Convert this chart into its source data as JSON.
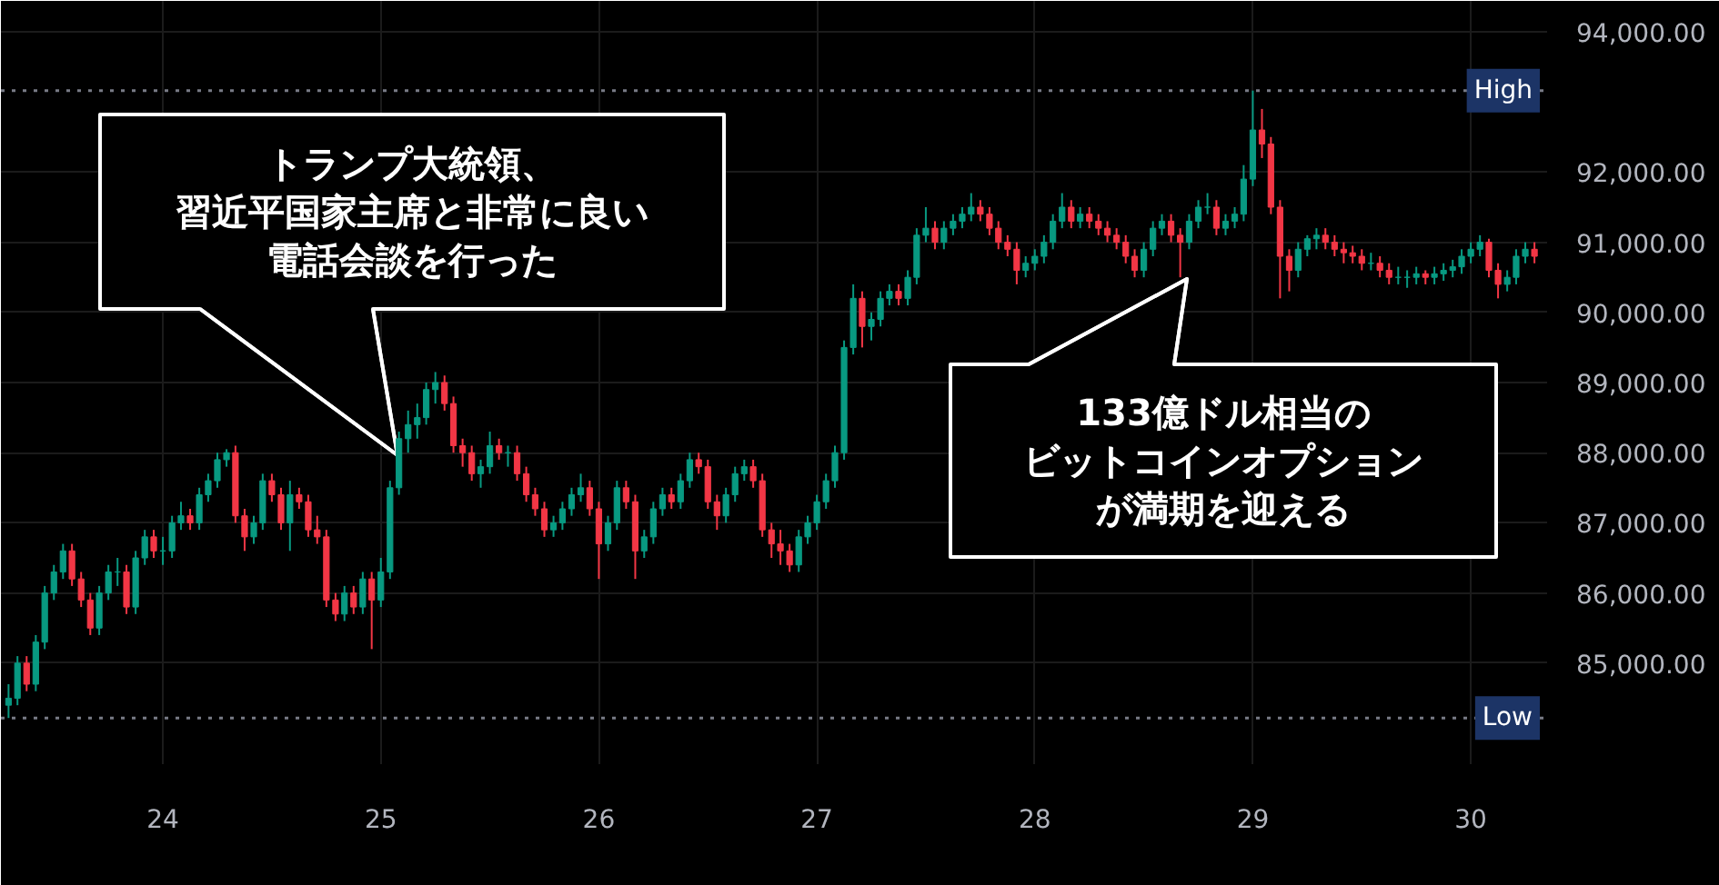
{
  "chart_data": {
    "type": "candlestick",
    "xlim": [
      23.257,
      30.35
    ],
    "ylim": [
      83560,
      94440
    ],
    "xticks": [
      24,
      25,
      26,
      27,
      28,
      29,
      30
    ],
    "yticks": [
      {
        "value": 85000,
        "label": "85,000.00"
      },
      {
        "value": 86000,
        "label": "86,000.00"
      },
      {
        "value": 87000,
        "label": "87,000.00"
      },
      {
        "value": 88000,
        "label": "88,000.00"
      },
      {
        "value": 89000,
        "label": "89,000.00"
      },
      {
        "value": 90000,
        "label": "90,000.00"
      },
      {
        "value": 91000,
        "label": "91,000.00"
      },
      {
        "value": 92000,
        "label": "92,000.00"
      },
      {
        "value": 94000,
        "label": "94,000.00"
      }
    ],
    "grid": true,
    "ref_lines": [
      {
        "axis": "y",
        "value": 93161.86,
        "label": "High",
        "color": "#787b86",
        "line_style": "dotted"
      },
      {
        "axis": "y",
        "value": 84217.87,
        "label": "Low",
        "color": "#787b86",
        "line_style": "dotted"
      }
    ],
    "annotations": [
      "トランプ大統領、習近平国家主席と非常に良い電話会談を行った",
      "133億ドル相当のビットコインオプションが満期を迎える"
    ],
    "x": [
      23.292,
      23.333,
      23.375,
      23.417,
      23.458,
      23.5,
      23.542,
      23.583,
      23.625,
      23.667,
      23.708,
      23.75,
      23.792,
      23.833,
      23.875,
      23.917,
      23.958,
      24.0,
      24.042,
      24.083,
      24.125,
      24.167,
      24.208,
      24.25,
      24.292,
      24.333,
      24.375,
      24.417,
      24.458,
      24.5,
      24.542,
      24.583,
      24.625,
      24.667,
      24.708,
      24.75,
      24.792,
      24.833,
      24.875,
      24.917,
      24.958,
      25.0,
      25.042,
      25.083,
      25.125,
      25.167,
      25.208,
      25.25,
      25.292,
      25.333,
      25.375,
      25.417,
      25.458,
      25.5,
      25.542,
      25.583,
      25.625,
      25.667,
      25.708,
      25.75,
      25.792,
      25.833,
      25.875,
      25.917,
      25.958,
      26.0,
      26.042,
      26.083,
      26.125,
      26.167,
      26.208,
      26.25,
      26.292,
      26.333,
      26.375,
      26.417,
      26.458,
      26.5,
      26.542,
      26.583,
      26.625,
      26.667,
      26.708,
      26.75,
      26.792,
      26.833,
      26.875,
      26.917,
      26.958,
      27.0,
      27.042,
      27.083,
      27.125,
      27.167,
      27.208,
      27.25,
      27.292,
      27.333,
      27.375,
      27.417,
      27.458,
      27.5,
      27.542,
      27.583,
      27.625,
      27.667,
      27.708,
      27.75,
      27.792,
      27.833,
      27.875,
      27.917,
      27.958,
      28.0,
      28.042,
      28.083,
      28.125,
      28.167,
      28.208,
      28.25,
      28.292,
      28.333,
      28.375,
      28.417,
      28.458,
      28.5,
      28.542,
      28.583,
      28.625,
      28.667,
      28.708,
      28.75,
      28.792,
      28.833,
      28.875,
      28.917,
      28.958,
      29.0,
      29.042,
      29.083,
      29.125,
      29.167,
      29.208,
      29.25,
      29.292,
      29.333,
      29.375,
      29.417,
      29.458,
      29.5,
      29.542,
      29.583,
      29.625,
      29.667,
      29.708,
      29.75,
      29.792,
      29.833,
      29.875,
      29.917,
      29.958,
      30.0,
      30.042,
      30.083,
      30.125,
      30.167,
      30.208,
      30.25,
      30.292
    ],
    "ohlc": [
      [
        84400,
        84700,
        84217.87,
        84500
      ],
      [
        84500,
        85100,
        84400,
        85000
      ],
      [
        85000,
        85100,
        84600,
        84700
      ],
      [
        84700,
        85400,
        84600,
        85300
      ],
      [
        85300,
        86100,
        85200,
        86000
      ],
      [
        86000,
        86400,
        85900,
        86300
      ],
      [
        86300,
        86700,
        86200,
        86600
      ],
      [
        86600,
        86700,
        86100,
        86200
      ],
      [
        86200,
        86300,
        85800,
        85900
      ],
      [
        85900,
        86000,
        85400,
        85500
      ],
      [
        85500,
        86100,
        85400,
        86000
      ],
      [
        86000,
        86400,
        85900,
        86300
      ],
      [
        86300,
        86500,
        86100,
        86300
      ],
      [
        86300,
        86400,
        85700,
        85800
      ],
      [
        85800,
        86600,
        85700,
        86500
      ],
      [
        86500,
        86900,
        86400,
        86800
      ],
      [
        86800,
        86900,
        86500,
        86600
      ],
      [
        86600,
        86800,
        86400,
        86600
      ],
      [
        86600,
        87100,
        86500,
        87000
      ],
      [
        87000,
        87300,
        86900,
        87100
      ],
      [
        87100,
        87200,
        86900,
        87000
      ],
      [
        87000,
        87500,
        86900,
        87400
      ],
      [
        87400,
        87700,
        87300,
        87600
      ],
      [
        87600,
        88000,
        87500,
        87900
      ],
      [
        87900,
        88050,
        87800,
        88000
      ],
      [
        88000,
        88100,
        87000,
        87100
      ],
      [
        87100,
        87200,
        86600,
        86800
      ],
      [
        86800,
        87100,
        86700,
        87000
      ],
      [
        87000,
        87700,
        86900,
        87600
      ],
      [
        87600,
        87700,
        87300,
        87400
      ],
      [
        87400,
        87500,
        86900,
        87000
      ],
      [
        87000,
        87600,
        86600,
        87400
      ],
      [
        87400,
        87500,
        87200,
        87300
      ],
      [
        87300,
        87400,
        86800,
        86900
      ],
      [
        86900,
        87100,
        86700,
        86800
      ],
      [
        86800,
        86900,
        85800,
        85900
      ],
      [
        85900,
        86000,
        85600,
        85700
      ],
      [
        85700,
        86100,
        85600,
        86000
      ],
      [
        86000,
        86100,
        85700,
        85800
      ],
      [
        85800,
        86300,
        85700,
        86200
      ],
      [
        86200,
        86300,
        85200,
        85900
      ],
      [
        85900,
        86500,
        85800,
        86300
      ],
      [
        86300,
        87600,
        86200,
        87500
      ],
      [
        87500,
        88300,
        87400,
        88200
      ],
      [
        88200,
        88600,
        88000,
        88400
      ],
      [
        88400,
        88700,
        88200,
        88500
      ],
      [
        88500,
        89000,
        88400,
        88900
      ],
      [
        88900,
        89150,
        88700,
        89000
      ],
      [
        89000,
        89100,
        88600,
        88700
      ],
      [
        88700,
        88800,
        88000,
        88100
      ],
      [
        88100,
        88200,
        87800,
        88000
      ],
      [
        88000,
        88100,
        87600,
        87700
      ],
      [
        87700,
        87900,
        87500,
        87800
      ],
      [
        87800,
        88300,
        87700,
        88100
      ],
      [
        88100,
        88200,
        87900,
        88000
      ],
      [
        88000,
        88100,
        87800,
        88000
      ],
      [
        88000,
        88100,
        87600,
        87700
      ],
      [
        87700,
        87800,
        87300,
        87400
      ],
      [
        87400,
        87500,
        87100,
        87200
      ],
      [
        87200,
        87300,
        86800,
        86900
      ],
      [
        86900,
        87100,
        86800,
        87000
      ],
      [
        87000,
        87300,
        86900,
        87200
      ],
      [
        87200,
        87500,
        87100,
        87400
      ],
      [
        87400,
        87700,
        87300,
        87500
      ],
      [
        87500,
        87600,
        87100,
        87200
      ],
      [
        87200,
        87300,
        86200,
        86700
      ],
      [
        86700,
        87100,
        86600,
        87000
      ],
      [
        87000,
        87600,
        86900,
        87500
      ],
      [
        87500,
        87600,
        87200,
        87300
      ],
      [
        87300,
        87400,
        86200,
        86600
      ],
      [
        86600,
        86900,
        86500,
        86800
      ],
      [
        86800,
        87300,
        86700,
        87200
      ],
      [
        87200,
        87500,
        87100,
        87400
      ],
      [
        87400,
        87500,
        87200,
        87300
      ],
      [
        87300,
        87700,
        87200,
        87600
      ],
      [
        87600,
        88000,
        87500,
        87900
      ],
      [
        87900,
        88000,
        87700,
        87800
      ],
      [
        87800,
        87900,
        87200,
        87300
      ],
      [
        87300,
        87400,
        86900,
        87100
      ],
      [
        87100,
        87500,
        87000,
        87400
      ],
      [
        87400,
        87800,
        87300,
        87700
      ],
      [
        87700,
        87900,
        87600,
        87800
      ],
      [
        87800,
        87900,
        87500,
        87600
      ],
      [
        87600,
        87700,
        86800,
        86900
      ],
      [
        86900,
        87000,
        86500,
        86700
      ],
      [
        86700,
        86900,
        86400,
        86600
      ],
      [
        86600,
        86700,
        86300,
        86400
      ],
      [
        86400,
        86900,
        86300,
        86800
      ],
      [
        86800,
        87100,
        86700,
        87000
      ],
      [
        87000,
        87400,
        86900,
        87300
      ],
      [
        87300,
        87700,
        87200,
        87600
      ],
      [
        87600,
        88100,
        87500,
        88000
      ],
      [
        88000,
        89600,
        87900,
        89500
      ],
      [
        89500,
        90400,
        89400,
        90200
      ],
      [
        90200,
        90300,
        89500,
        89800
      ],
      [
        89800,
        90000,
        89600,
        89900
      ],
      [
        89900,
        90300,
        89800,
        90200
      ],
      [
        90200,
        90400,
        90100,
        90300
      ],
      [
        90300,
        90400,
        90100,
        90200
      ],
      [
        90200,
        90600,
        90100,
        90500
      ],
      [
        90500,
        91200,
        90400,
        91100
      ],
      [
        91100,
        91500,
        91000,
        91200
      ],
      [
        91200,
        91300,
        90900,
        91000
      ],
      [
        91000,
        91300,
        90900,
        91200
      ],
      [
        91200,
        91400,
        91100,
        91300
      ],
      [
        91300,
        91500,
        91200,
        91400
      ],
      [
        91400,
        91700,
        91300,
        91500
      ],
      [
        91500,
        91600,
        91300,
        91400
      ],
      [
        91400,
        91500,
        91100,
        91200
      ],
      [
        91200,
        91300,
        90900,
        91000
      ],
      [
        91000,
        91100,
        90800,
        90900
      ],
      [
        90900,
        91000,
        90400,
        90600
      ],
      [
        90600,
        90800,
        90500,
        90700
      ],
      [
        90700,
        90900,
        90600,
        90800
      ],
      [
        90800,
        91100,
        90700,
        91000
      ],
      [
        91000,
        91400,
        90900,
        91300
      ],
      [
        91300,
        91700,
        91200,
        91500
      ],
      [
        91500,
        91600,
        91200,
        91300
      ],
      [
        91300,
        91500,
        91200,
        91400
      ],
      [
        91400,
        91500,
        91200,
        91300
      ],
      [
        91300,
        91400,
        91100,
        91200
      ],
      [
        91200,
        91300,
        91000,
        91100
      ],
      [
        91100,
        91200,
        90900,
        91000
      ],
      [
        91000,
        91100,
        90700,
        90800
      ],
      [
        90800,
        90900,
        90500,
        90600
      ],
      [
        90600,
        91000,
        90500,
        90900
      ],
      [
        90900,
        91300,
        90800,
        91200
      ],
      [
        91200,
        91400,
        91100,
        91300
      ],
      [
        91300,
        91400,
        91000,
        91100
      ],
      [
        91100,
        91200,
        90500,
        91000
      ],
      [
        91000,
        91400,
        90900,
        91300
      ],
      [
        91300,
        91600,
        91200,
        91500
      ],
      [
        91500,
        91700,
        91400,
        91500
      ],
      [
        91500,
        91600,
        91100,
        91200
      ],
      [
        91200,
        91400,
        91100,
        91300
      ],
      [
        91300,
        91500,
        91200,
        91400
      ],
      [
        91400,
        92100,
        91300,
        91900
      ],
      [
        91900,
        93161.86,
        91800,
        92600
      ],
      [
        92600,
        92900,
        92200,
        92400
      ],
      [
        92400,
        92500,
        91400,
        91500
      ],
      [
        91500,
        91600,
        90200,
        90800
      ],
      [
        90800,
        90900,
        90300,
        90600
      ],
      [
        90600,
        91000,
        90500,
        90900
      ],
      [
        90900,
        91100,
        90800,
        91050
      ],
      [
        91050,
        91200,
        90900,
        91100
      ],
      [
        91100,
        91200,
        90900,
        91000
      ],
      [
        91000,
        91100,
        90800,
        90900
      ],
      [
        90900,
        91000,
        90700,
        90850
      ],
      [
        90850,
        90950,
        90700,
        90800
      ],
      [
        90800,
        90900,
        90600,
        90700
      ],
      [
        90700,
        90850,
        90600,
        90700
      ],
      [
        90700,
        90800,
        90500,
        90600
      ],
      [
        90600,
        90700,
        90400,
        90500
      ],
      [
        90500,
        90650,
        90400,
        90500
      ],
      [
        90500,
        90600,
        90350,
        90500
      ],
      [
        90500,
        90650,
        90400,
        90550
      ],
      [
        90550,
        90600,
        90400,
        90500
      ],
      [
        90500,
        90650,
        90400,
        90550
      ],
      [
        90550,
        90700,
        90450,
        90600
      ],
      [
        90600,
        90750,
        90500,
        90650
      ],
      [
        90650,
        90900,
        90550,
        90800
      ],
      [
        90800,
        91000,
        90700,
        90900
      ],
      [
        90900,
        91100,
        90800,
        91000
      ],
      [
        91000,
        91050,
        90500,
        90600
      ],
      [
        90600,
        90700,
        90200,
        90400
      ],
      [
        90400,
        90600,
        90300,
        90500
      ],
      [
        90500,
        90900,
        90400,
        90800
      ],
      [
        90800,
        91000,
        90700,
        90900
      ],
      [
        90900,
        91000,
        90700,
        90800
      ]
    ],
    "colors": [
      "#089981",
      "#089981",
      "#f23645",
      "#089981",
      "#089981",
      "#089981",
      "#089981",
      "#f23645",
      "#f23645",
      "#f23645",
      "#089981",
      "#089981",
      "#089981",
      "#f23645",
      "#089981",
      "#089981",
      "#f23645",
      "#089981",
      "#089981",
      "#089981",
      "#f23645",
      "#089981",
      "#089981",
      "#089981",
      "#089981",
      "#f23645",
      "#f23645",
      "#089981",
      "#089981",
      "#f23645",
      "#f23645",
      "#089981",
      "#f23645",
      "#f23645",
      "#f23645",
      "#f23645",
      "#f23645",
      "#089981",
      "#f23645",
      "#089981",
      "#f23645",
      "#089981",
      "#089981",
      "#089981",
      "#089981",
      "#089981",
      "#089981",
      "#089981",
      "#f23645",
      "#f23645",
      "#f23645",
      "#f23645",
      "#089981",
      "#089981",
      "#f23645",
      "#089981",
      "#f23645",
      "#f23645",
      "#f23645",
      "#f23645",
      "#089981",
      "#089981",
      "#089981",
      "#089981",
      "#f23645",
      "#f23645",
      "#089981",
      "#089981",
      "#f23645",
      "#f23645",
      "#089981",
      "#089981",
      "#089981",
      "#f23645",
      "#089981",
      "#089981",
      "#f23645",
      "#f23645",
      "#f23645",
      "#089981",
      "#089981",
      "#089981",
      "#f23645",
      "#f23645",
      "#f23645",
      "#f23645",
      "#f23645",
      "#089981",
      "#089981",
      "#089981",
      "#089981",
      "#089981",
      "#089981",
      "#089981",
      "#f23645",
      "#089981",
      "#089981",
      "#089981",
      "#f23645",
      "#089981",
      "#089981",
      "#089981",
      "#f23645",
      "#089981",
      "#089981",
      "#089981",
      "#089981",
      "#f23645",
      "#f23645",
      "#f23645",
      "#f23645",
      "#f23645",
      "#089981",
      "#089981",
      "#089981",
      "#089981",
      "#089981",
      "#f23645",
      "#089981",
      "#f23645",
      "#f23645",
      "#f23645",
      "#f23645",
      "#f23645",
      "#f23645",
      "#089981",
      "#089981",
      "#089981",
      "#f23645",
      "#f23645",
      "#089981",
      "#089981",
      "#089981",
      "#f23645",
      "#089981",
      "#089981",
      "#089981",
      "#089981",
      "#f23645",
      "#f23645",
      "#f23645",
      "#f23645",
      "#089981",
      "#089981",
      "#089981",
      "#f23645",
      "#f23645",
      "#f23645",
      "#f23645",
      "#f23645",
      "#089981",
      "#f23645",
      "#f23645",
      "#089981",
      "#089981",
      "#089981",
      "#f23645",
      "#089981",
      "#089981",
      "#089981",
      "#089981",
      "#089981",
      "#089981",
      "#f23645",
      "#f23645",
      "#089981",
      "#089981",
      "#089981",
      "#f23645"
    ]
  }
}
